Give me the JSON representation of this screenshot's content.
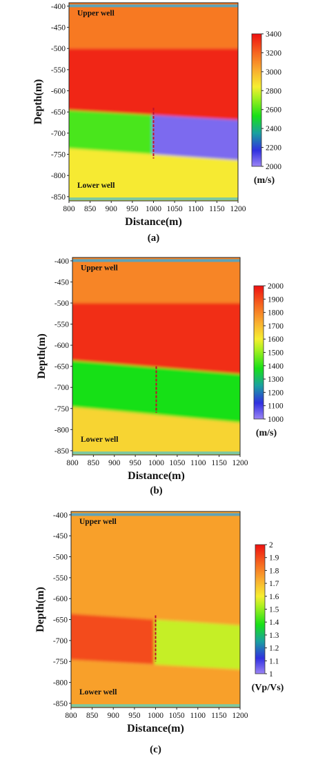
{
  "chart_data": [
    {
      "type": "heatmap",
      "caption": "(a)",
      "xlabel": "Distance(m)",
      "ylabel": "Depth(m)",
      "xlim": [
        800,
        1200
      ],
      "ylim": [
        -860,
        -392
      ],
      "xticks": [
        800,
        850,
        900,
        950,
        1000,
        1050,
        1100,
        1150,
        1200
      ],
      "yticks": [
        -400,
        -450,
        -500,
        -550,
        -600,
        -650,
        -700,
        -750,
        -800,
        -850
      ],
      "colorbar": {
        "min": 2000,
        "max": 3400,
        "ticks": [
          2000,
          2200,
          2400,
          2600,
          2800,
          3000,
          3200,
          3400
        ],
        "unit": "(m/s)"
      },
      "annotations": [
        "Upper well",
        "Lower well"
      ],
      "well_line": {
        "x": 1000,
        "y_top": -640,
        "y_bottom": -760
      },
      "layers": [
        {
          "top": -392,
          "bottom": -500,
          "value": 3150
        },
        {
          "top": -500,
          "bottom_left": -645,
          "bottom_right": -670,
          "value": 3350
        },
        {
          "top_left": -645,
          "top_right": -670,
          "bottom_left": -735,
          "bottom_right": -765,
          "value_left": 2600,
          "value_right": 2050
        },
        {
          "top_left": -735,
          "top_right": -765,
          "bottom": -860,
          "value": 2850
        }
      ]
    },
    {
      "type": "heatmap",
      "caption": "(b)",
      "xlabel": "Distance(m)",
      "ylabel": "Depth(m)",
      "xlim": [
        800,
        1200
      ],
      "ylim": [
        -860,
        -392
      ],
      "xticks": [
        800,
        850,
        900,
        950,
        1000,
        1050,
        1100,
        1150,
        1200
      ],
      "yticks": [
        -400,
        -450,
        -500,
        -550,
        -600,
        -650,
        -700,
        -750,
        -800,
        -850
      ],
      "colorbar": {
        "min": 1000,
        "max": 2000,
        "ticks": [
          1000,
          1100,
          1200,
          1300,
          1400,
          1500,
          1600,
          1700,
          1800,
          1900,
          2000
        ],
        "unit": "(m/s)"
      },
      "annotations": [
        "Upper well",
        "Lower well"
      ],
      "well_line": {
        "x": 1000,
        "y_top": -650,
        "y_bottom": -760
      },
      "layers": [
        {
          "top": -392,
          "bottom": -500,
          "value": 1800
        },
        {
          "top": -500,
          "bottom_left": -635,
          "bottom_right": -670,
          "value": 1950
        },
        {
          "top_left": -635,
          "top_right": -670,
          "bottom_left": -745,
          "bottom_right": -785,
          "value": 1380
        },
        {
          "top_left": -745,
          "top_right": -785,
          "bottom": -860,
          "value": 1650
        }
      ]
    },
    {
      "type": "heatmap",
      "caption": "(c)",
      "xlabel": "Distance(m)",
      "ylabel": "Depth(m)",
      "xlim": [
        800,
        1200
      ],
      "ylim": [
        -860,
        -392
      ],
      "xticks": [
        800,
        850,
        900,
        950,
        1000,
        1050,
        1100,
        1150,
        1200
      ],
      "yticks": [
        -400,
        -450,
        -500,
        -550,
        -600,
        -650,
        -700,
        -750,
        -800,
        -850
      ],
      "colorbar": {
        "min": 1,
        "max": 2,
        "ticks": [
          1,
          1.1,
          1.2,
          1.3,
          1.4,
          1.5,
          1.6,
          1.7,
          1.8,
          1.9,
          2
        ],
        "unit": "(Vp/Vs)"
      },
      "annotations": [
        "Upper well",
        "Lower well"
      ],
      "well_line": {
        "x": 1000,
        "y_top": -640,
        "y_bottom": -750
      },
      "layers": [
        {
          "top": -392,
          "bottom_left": -635,
          "bottom_right": -665,
          "value": 1.75
        },
        {
          "top_left": -635,
          "top_right": -665,
          "bottom_left": -745,
          "bottom_right": -770,
          "value_left": 1.9,
          "value_right": 1.55
        },
        {
          "top_left": -745,
          "top_right": -770,
          "bottom": -860,
          "value": 1.75
        }
      ]
    }
  ]
}
